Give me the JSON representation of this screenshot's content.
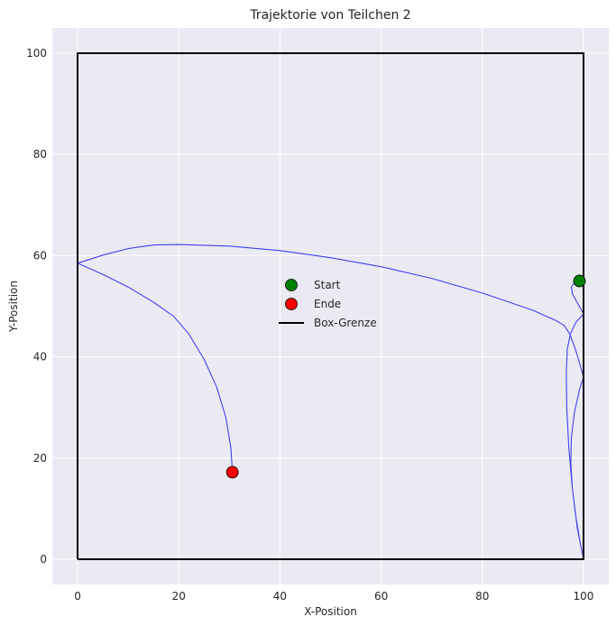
{
  "chart_data": {
    "type": "line",
    "title": "Trajektorie von Teilchen 2",
    "xlabel": "X-Position",
    "ylabel": "Y-Position",
    "xlim": [
      -5,
      105
    ],
    "ylim": [
      -5,
      105
    ],
    "xticks": [
      0,
      20,
      40,
      60,
      80,
      100
    ],
    "yticks": [
      0,
      20,
      40,
      60,
      80,
      100
    ],
    "grid": true,
    "background": "#eaeaf2",
    "legend": {
      "position": "center",
      "entries": [
        {
          "label": "Start",
          "kind": "marker",
          "color": "#008000"
        },
        {
          "label": "Ende",
          "kind": "marker",
          "color": "#ff0000"
        },
        {
          "label": "Box-Grenze",
          "kind": "line",
          "color": "#000000"
        }
      ]
    },
    "series": [
      {
        "kind": "trajectory",
        "color": "#4040f0",
        "points": [
          [
            99.2,
            55
          ],
          [
            98.2,
            54.6
          ],
          [
            97.6,
            53.8
          ],
          [
            97.8,
            52.5
          ],
          [
            98.6,
            51.0
          ],
          [
            100,
            48.5
          ],
          [
            98.5,
            46.8
          ],
          [
            97.4,
            44.5
          ],
          [
            96.8,
            41.5
          ],
          [
            96.6,
            37
          ],
          [
            96.7,
            30
          ],
          [
            97.1,
            22
          ],
          [
            97.8,
            14
          ],
          [
            98.8,
            6
          ],
          [
            100,
            0
          ],
          [
            99.2,
            4
          ],
          [
            98.4,
            9
          ],
          [
            97.8,
            14
          ],
          [
            97.5,
            19
          ],
          [
            97.6,
            24
          ],
          [
            98.2,
            29
          ],
          [
            99.2,
            33.5
          ],
          [
            100,
            36
          ],
          [
            99.3,
            38.5
          ],
          [
            98.4,
            41.5
          ],
          [
            97.3,
            44.5
          ],
          [
            96.2,
            46.2
          ],
          [
            94.5,
            47.2
          ],
          [
            90,
            49.2
          ],
          [
            80,
            52.6
          ],
          [
            70,
            55.5
          ],
          [
            60,
            57.8
          ],
          [
            50,
            59.6
          ],
          [
            40,
            61.0
          ],
          [
            30,
            61.9
          ],
          [
            20,
            62.2
          ],
          [
            15,
            62.1
          ],
          [
            10,
            61.4
          ],
          [
            5,
            60.1
          ],
          [
            0,
            58.5
          ],
          [
            5,
            56.3
          ],
          [
            10,
            53.8
          ],
          [
            15,
            50.8
          ],
          [
            19,
            48
          ],
          [
            22,
            44.5
          ],
          [
            25,
            39.5
          ],
          [
            27.5,
            34
          ],
          [
            29.3,
            28
          ],
          [
            30.3,
            22
          ],
          [
            30.6,
            17.2
          ]
        ]
      },
      {
        "kind": "box",
        "name": "Box-Grenze",
        "color": "#000000",
        "points": [
          [
            0,
            0
          ],
          [
            100,
            0
          ],
          [
            100,
            100
          ],
          [
            0,
            100
          ],
          [
            0,
            0
          ]
        ]
      }
    ],
    "start": {
      "x": 99.2,
      "y": 55,
      "color": "#008000"
    },
    "end": {
      "x": 30.6,
      "y": 17.2,
      "color": "#ff0000"
    }
  }
}
